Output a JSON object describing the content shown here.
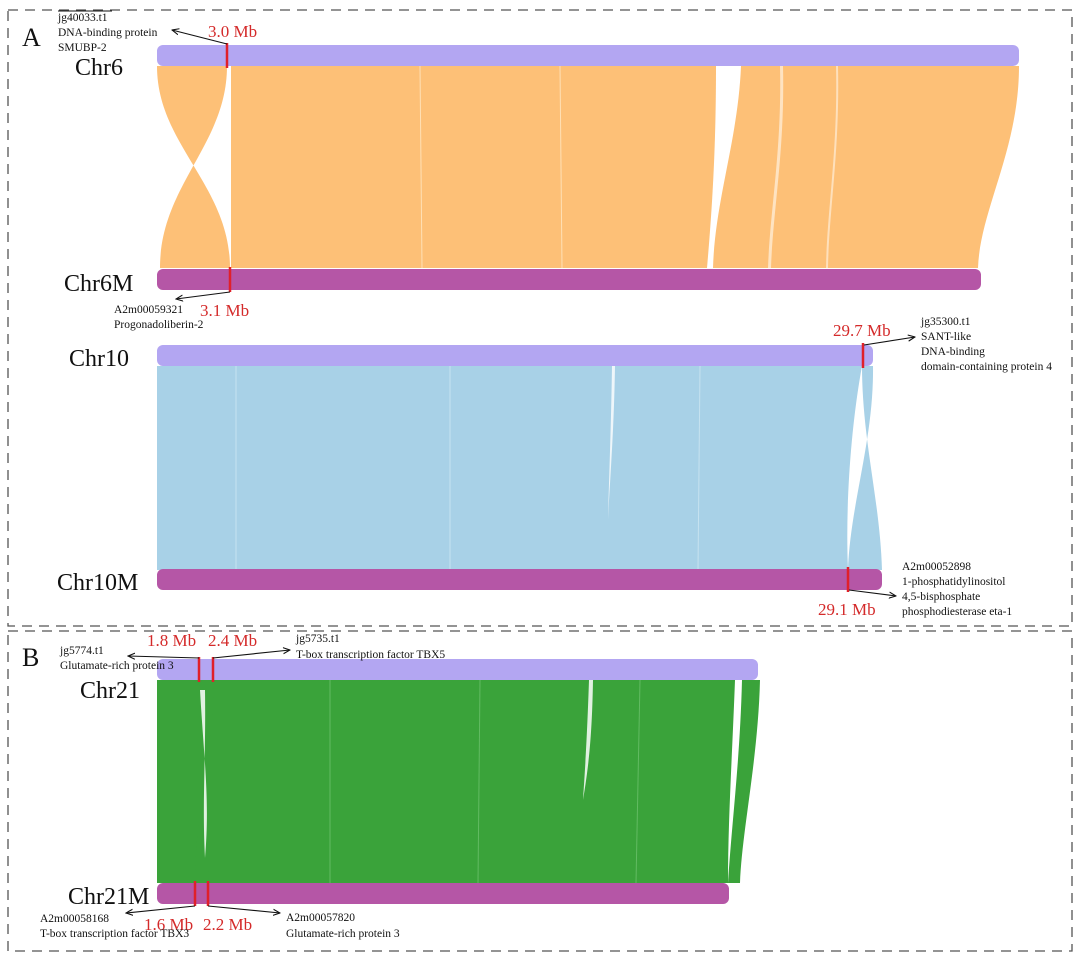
{
  "panels": [
    {
      "letter": "A"
    },
    {
      "letter": "B"
    }
  ],
  "colors": {
    "reference_bar": "#b3a6f2",
    "query_bar": "#b556a6",
    "breakpoint": "#e0202a",
    "mb_label": "#d42a2a",
    "chr6_link": "#fdc077",
    "chr10_link": "#a8d1e7",
    "chr21_link": "#3aa33a"
  },
  "pairs": [
    {
      "id": "chr6",
      "ref_label": "Chr6",
      "query_label": "Chr6M",
      "link_color": "#fdc077",
      "ref_breakpoint_mb": "3.0 Mb",
      "query_breakpoint_mb": "3.1 Mb",
      "ref_gene": [
        "jg40033.t1",
        "DNA-binding protein",
        "SMUBP-2"
      ],
      "query_gene": [
        "A2m00059321",
        "Progonadoliberin-2"
      ]
    },
    {
      "id": "chr10",
      "ref_label": "Chr10",
      "query_label": "Chr10M",
      "link_color": "#a8d1e7",
      "ref_breakpoint_mb": "29.7 Mb",
      "query_breakpoint_mb": "29.1 Mb",
      "ref_gene": [
        "jg35300.t1",
        "SANT-like",
        "DNA-binding",
        "domain-containing protein 4"
      ],
      "query_gene": [
        "A2m00052898",
        "1-phosphatidylinositol",
        "4,5-bisphosphate",
        "phosphodiesterase eta-1"
      ]
    },
    {
      "id": "chr21",
      "ref_label": "Chr21",
      "query_label": "Chr21M",
      "link_color": "#3aa33a",
      "ref_breakpoints_mb": [
        "1.8 Mb",
        "2.4 Mb"
      ],
      "query_breakpoints_mb": [
        "1.6 Mb",
        "2.2 Mb"
      ],
      "ref_gene_left": [
        "jg5774.t1",
        "Glutamate-rich protein 3"
      ],
      "ref_gene_right": [
        "jg5735.t1",
        "T-box transcription factor TBX5"
      ],
      "query_gene_left": [
        "A2m00058168",
        "T-box transcription factor TBX3"
      ],
      "query_gene_right": [
        "A2m00057820",
        "Glutamate-rich protein 3"
      ]
    }
  ]
}
